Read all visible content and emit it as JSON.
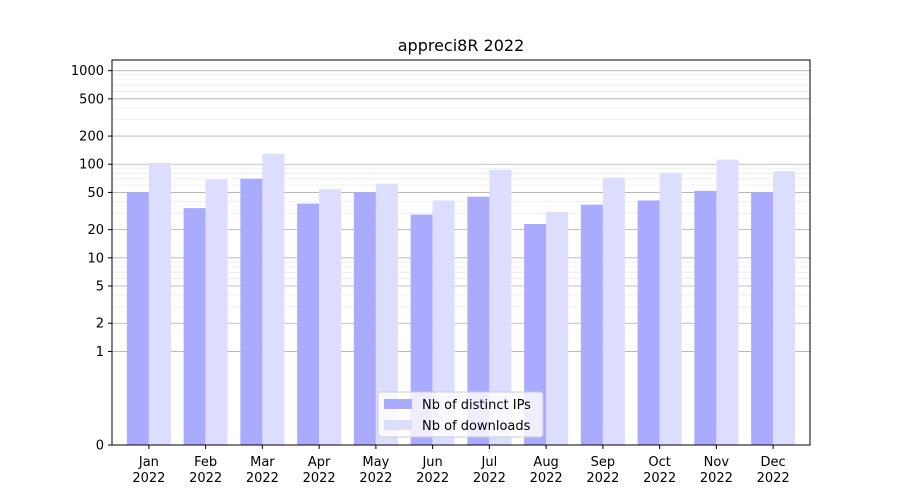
{
  "chart_data": {
    "type": "bar",
    "title": "appreci8R 2022",
    "xlabel": "",
    "ylabel": "",
    "yscale": "symlog",
    "ylim": [
      0,
      1300
    ],
    "yticks": [
      0,
      1,
      2,
      5,
      10,
      20,
      50,
      100,
      200,
      500,
      1000
    ],
    "ytick_labels": [
      "0",
      "1",
      "2",
      "5",
      "10",
      "20",
      "50",
      "100",
      "200",
      "500",
      "1000"
    ],
    "categories": [
      "Jan",
      "Feb",
      "Mar",
      "Apr",
      "May",
      "Jun",
      "Jul",
      "Aug",
      "Sep",
      "Oct",
      "Nov",
      "Dec"
    ],
    "category_sublabel": "2022",
    "grid": true,
    "legend_position": "bottom-center",
    "series": [
      {
        "name": "Nb of distinct IPs",
        "color": "#aaaaff",
        "values": [
          50,
          34,
          70,
          38,
          50,
          29,
          45,
          23,
          37,
          41,
          52,
          50
        ]
      },
      {
        "name": "Nb of downloads",
        "color": "#ddddff",
        "values": [
          103,
          69,
          129,
          54,
          62,
          41,
          87,
          31,
          72,
          81,
          112,
          84
        ]
      }
    ]
  }
}
